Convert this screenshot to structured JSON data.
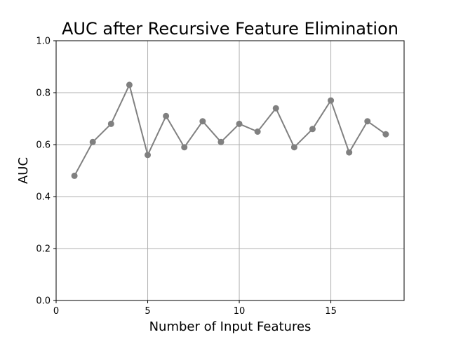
{
  "chart_data": {
    "type": "line",
    "title": "AUC after Recursive Feature Elimination",
    "xlabel": "Number of Input Features",
    "ylabel": "AUC",
    "xlim": [
      0,
      19
    ],
    "ylim": [
      0.0,
      1.0
    ],
    "xticks": [
      0,
      5,
      10,
      15
    ],
    "xtick_labels": [
      "0",
      "5",
      "10",
      "15"
    ],
    "yticks": [
      0.0,
      0.2,
      0.4,
      0.6,
      0.8,
      1.0
    ],
    "ytick_labels": [
      "0.0",
      "0.2",
      "0.4",
      "0.6",
      "0.8",
      "1.0"
    ],
    "grid": true,
    "series": [
      {
        "color": "#808080",
        "marker": "circle",
        "x": [
          1,
          2,
          3,
          4,
          5,
          6,
          7,
          8,
          9,
          10,
          11,
          12,
          13,
          14,
          15,
          16,
          17,
          18
        ],
        "y": [
          0.48,
          0.61,
          0.68,
          0.83,
          0.56,
          0.71,
          0.59,
          0.69,
          0.61,
          0.68,
          0.65,
          0.74,
          0.59,
          0.66,
          0.77,
          0.57,
          0.69,
          0.64
        ]
      }
    ]
  }
}
